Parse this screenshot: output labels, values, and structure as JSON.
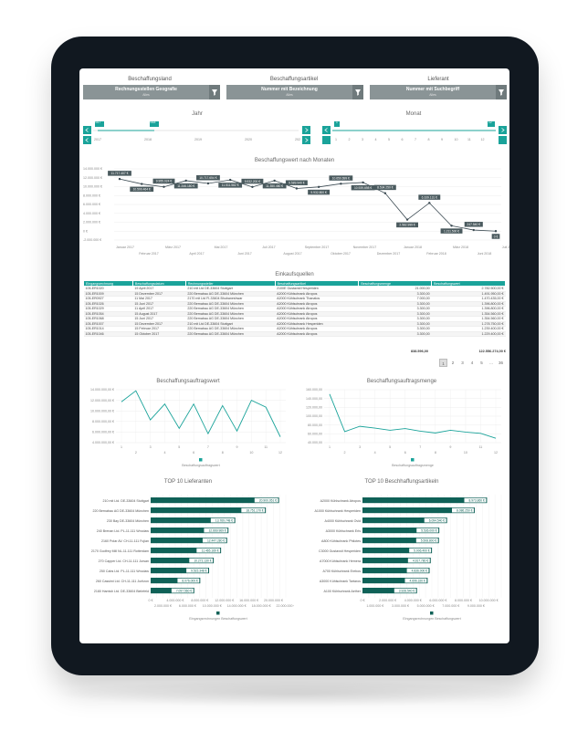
{
  "filters": [
    {
      "label": "Beschaffungsland",
      "value": "Rechnungsstellen Geografie",
      "sub": "Alles"
    },
    {
      "label": "Beschaffungsartikel",
      "value": "Nummer mit Bezeichnung",
      "sub": "Alles"
    },
    {
      "label": "Lieferant",
      "value": "Nummer mit Suchbegriff",
      "sub": "Alles"
    }
  ],
  "year_slider": {
    "title": "Jahr",
    "start": "2017",
    "end": "2018",
    "ticks": [
      "2017",
      "2018",
      "2019",
      "2020",
      "202"
    ]
  },
  "month_slider": {
    "title": "Monat",
    "start": "1",
    "end": "12",
    "ticks": [
      "1",
      "2",
      "3",
      "4",
      "5",
      "6",
      "7",
      "8",
      "9",
      "10",
      "11",
      "12"
    ]
  },
  "line_chart": {
    "title": "Beschaffungswert nach Monaten",
    "y_ticks": [
      "14.000.000 €",
      "12.000.000 €",
      "10.000.000 €",
      "8.000.000 €",
      "6.000.000 €",
      "4.000.000 €",
      "2.000.000 €",
      "0 €",
      "-2.000.000 €"
    ],
    "x_labels_top": [
      "Januar 2017",
      "März 2017",
      "Mai 2017",
      "Juli 2017",
      "September 2017",
      "November 2017",
      "Januar 2018",
      "März 2018",
      "Juli 2018"
    ],
    "x_labels_bottom": [
      "Februar 2017",
      "April 2017",
      "Juni 2017",
      "August 2017",
      "Oktober 2017",
      "Dezember 2017",
      "Februar 2018",
      "Juni 2018"
    ],
    "labels": [
      "11.717.407 €",
      "10.599.464 €",
      "9.955.024 €",
      "11.346.180 €",
      "10.717.654 €",
      "11.511.582 €",
      "9.932.200 €",
      "11.350.460 €",
      "9.589.940 €",
      "9.932.800 €",
      "10.650.699 €",
      "10.939.698 €",
      "8.534.250 €",
      "2.582.999 €",
      "6.339.131 €",
      "1.211.500 €",
      "247.540 €",
      "0 €"
    ]
  },
  "table": {
    "title": "Einkaufsquellen",
    "headers": [
      "Eingangsrechnung",
      "Beschaffungsdatum",
      "Rechnungssteller",
      "Beschaffungsartikel",
      "Beschaffungsmenge",
      "Beschaffungswert"
    ],
    "rows": [
      [
        "105-ER1020",
        "19 April 2017",
        "210 mit Ltd DE-33604 Stuttgart",
        "2100E Gustavsti Hesperiden",
        "21.000,00",
        "2.782.500,00 €"
      ],
      [
        "105-ER1009",
        "15 Dezember 2017",
        "220 Bernabau AG DE-33604 München",
        "A2000 Kühlschrank Atropos",
        "3.300,00",
        "1.491.950,00 €"
      ],
      [
        "105-ER0927",
        "11 Mai 2017",
        "2170 mit Ltd FI-33604 Bhubaneshwar",
        "A2000 Kühlschrank Thanatos",
        "7.000,00",
        "1.470.435,00 €"
      ],
      [
        "105-ER1026",
        "15 Juni 2017",
        "220 Bernabau AG DE-33604 München",
        "A2000 Kühlschrank Atropos",
        "3.300,00",
        "1.396.800,00 €"
      ],
      [
        "105-ER1029",
        "11 April 2017",
        "220 Bernabau AG DE-33604 München",
        "A2000 Kühlschrank Atropos",
        "3.300,00",
        "1.396.800,00 €"
      ],
      [
        "105-ER1054",
        "15 August 2017",
        "220 Bernabau AG DE-33604 München",
        "A2000 Kühlschrank Atropos",
        "3.300,00",
        "1.354.560,00 €"
      ],
      [
        "105-ER1068",
        "15 Juni 2017",
        "220 Bernabau AG DE-33604 München",
        "A2000 Kühlschrank Atropos",
        "3.300,00",
        "1.354.560,00 €"
      ],
      [
        "105-ER1007",
        "15 Dezember 2017",
        "210 mit Ltd DE-33604 Stuttgart",
        "A2000 Kühlschrank Hesperiden",
        "3.300,00",
        "1.278.750,00 €"
      ],
      [
        "105-ER1014",
        "15 Februar 2017",
        "220 Bernabau AG DE-33604 München",
        "A2000 Kühlschrank Atropos",
        "3.300,00",
        "1.239.400,00 €"
      ],
      [
        "105-ER1046",
        "15 Oktober 2017",
        "220 Bernabau AG DE-33604 München",
        "A2000 Kühlschrank Atropos",
        "3.300,00",
        "1.229.400,00 €"
      ]
    ],
    "total_qty": "838.596,00",
    "total_value": "122.556.274,00 €",
    "pages": [
      "1",
      "2",
      "3",
      "4",
      "5",
      "...",
      "36"
    ]
  },
  "small_chart_left": {
    "title": "Beschaffungsauftragswert",
    "y_ticks": [
      "14.000.000,00 €",
      "12.000.000,00 €",
      "10.000.000,00 €",
      "8.000.000,00 €",
      "6.000.000,00 €",
      "4.000.000,00 €"
    ],
    "legend": "Beschaffungsauftragswert"
  },
  "small_chart_right": {
    "title": "Beschaffungsauftragsmenge",
    "y_ticks": [
      "160.000,00",
      "140.000,00",
      "120.000,00",
      "100.000,00",
      "80.000,00",
      "60.000,00",
      "40.000,00"
    ],
    "legend": "Beschaffungsauftragsmenge"
  },
  "month_x_ticks_odd": [
    "1",
    "3",
    "5",
    "7",
    "9",
    "11"
  ],
  "month_x_ticks_even": [
    "2",
    "4",
    "6",
    "8",
    "10",
    "12"
  ],
  "bar_left": {
    "title": "TOP 10 Lieferanten",
    "names": [
      "210 mit Ltd. DE-33604 Stuttgart",
      "220 Bernabau AG DE-33604 München",
      "230 Bay DE-33604 München",
      "240 Brenan Ltd. PL-11-111 Wroclaw",
      "2160 Polar AV. CH-11-111 Fujian",
      "2170 Godfrey Mill NL-11-111 Rotterdam",
      "270 Capper Ltd. CH-11-111 Jursan",
      "250 Cabs Ltd. PL-11-111 Wroclaw",
      "260 Cassimi Ltd. CH-11-111 Juritzon",
      "2180 Hamish Ltd. DE-33604 Bielefeld"
    ],
    "labels": [
      "20.900.051 €",
      "18.751.170 €",
      "13.769.748 €",
      "12.669.969 €",
      "12.447.280 €",
      "11.465.169 €",
      "10.272.130 €",
      "9.515.348 €",
      "8.076.009 €",
      "7.097.560 €"
    ],
    "values": [
      20900051,
      18751170,
      13769748,
      12669969,
      12447280,
      11465169,
      10272130,
      9515348,
      8076009,
      7097560
    ],
    "x_top": [
      "0 €",
      "4.000.000 €",
      "8.000.000 €",
      "12.000.000 €",
      "16.000.000 €",
      "20.000.000 €"
    ],
    "x_bottom": [
      "2.000.000 €",
      "6.000.000 €",
      "10.000.000 €",
      "14.000.000 €",
      "18.000.000 €",
      "22.000.000 €"
    ],
    "legend": "Eingangsrechnungen Beschaffungswert"
  },
  "bar_right": {
    "title": "TOP 10 Beschhaffungsartikeln",
    "names": [
      "A2000 Kühlschrank Atropos",
      "A1000 Kühlschrank Hesperiden",
      "A4000 Kühlschrank Ovid",
      "A3000 Kühlschrank Eris",
      "A800 Kühlschrank Philotes",
      "C3000 Gustavsti Hesperiden",
      "A7000 Kühlschrank Hemera",
      "A700 Kühlschrank Erebos",
      "A3000 Kühlschrank Tartaros",
      "A100 Kühlschrank Aether"
    ],
    "labels": [
      "8.973.860 €",
      "8.086.250 €",
      "6.094.540 €",
      "5.536.000 €",
      "5.508.800 €",
      "5.006.400 €",
      "4.917.780 €",
      "4.836.000 €",
      "4.696.320 €",
      "3.928.540 €"
    ],
    "values": [
      8973860,
      8086250,
      6094540,
      5536000,
      5508800,
      5006400,
      4917780,
      4836000,
      4696320,
      3928540
    ],
    "x_top": [
      "0 €",
      "2.000.000 €",
      "4.000.000 €",
      "6.000.000 €",
      "8.000.000 €",
      "10.000.000 €"
    ],
    "x_bottom": [
      "1.000.000 €",
      "3.000.000 €",
      "5.000.000 €",
      "7.000.000 €",
      "9.000.000 €"
    ],
    "legend": "Eingangsrechnungen Beschaffungswert"
  },
  "colors": {
    "teal": "#1aa39a",
    "dark_teal": "#0f6157",
    "label_dark": "#4a5a5e",
    "filter_gray": "#8a9496"
  }
}
